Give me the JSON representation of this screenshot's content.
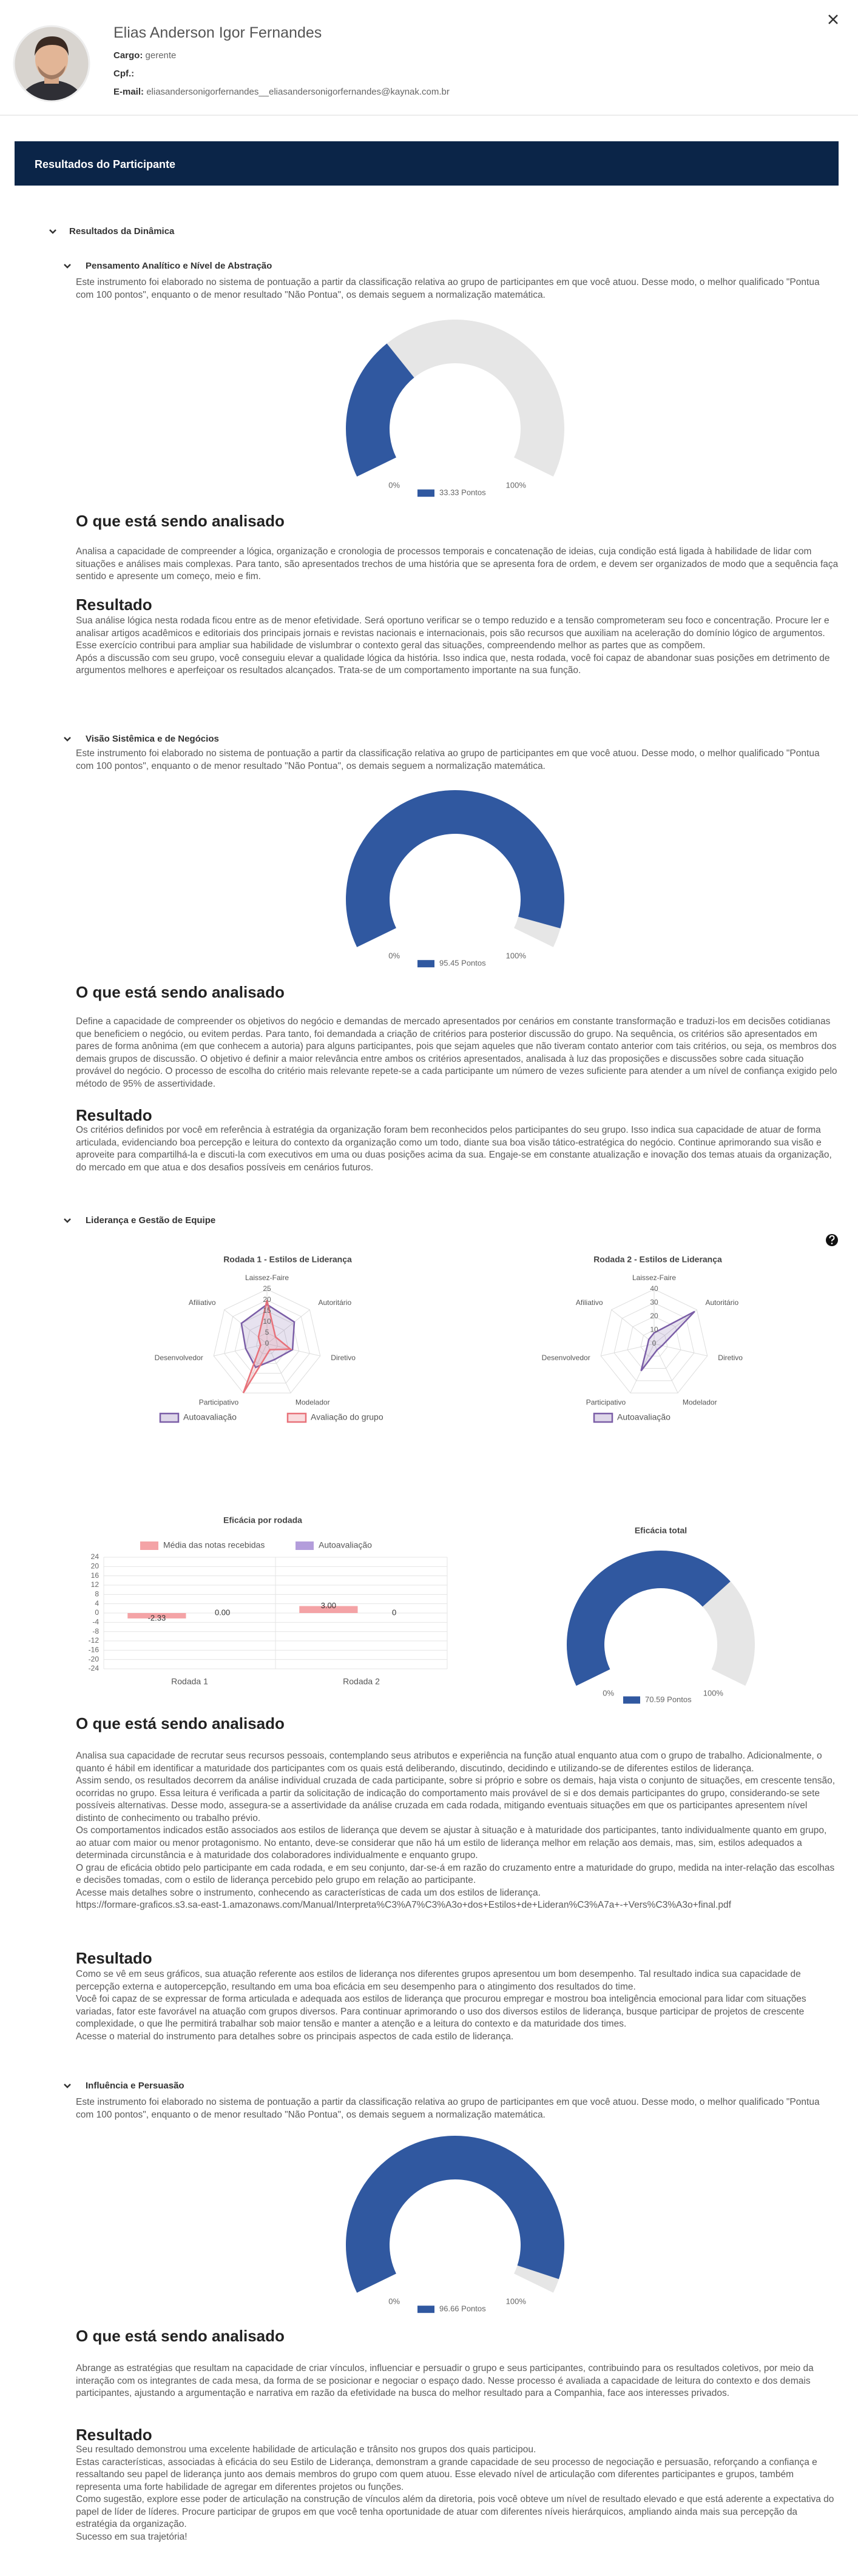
{
  "header": {
    "name": "Elias Anderson Igor Fernandes",
    "cargo_label": "Cargo:",
    "cargo": "gerente",
    "cpf_label": "Cpf.:",
    "email_label": "E-mail:",
    "email": "eliasandersonigorfernandes__eliasandersonigorfernandes@kaynak.com.br"
  },
  "banner": "Resultados do Participante",
  "group_title": "Resultados da Dinâmica",
  "sections": [
    {
      "title": "Pensamento Analítico e Nível de Abstração",
      "intro": "Este instrumento foi elaborado no sistema de pontuação a partir da classificação relativa ao grupo de participantes em que você atuou. Desse modo, o melhor qualificado \"Pontua com 100 pontos\", enquanto o de menor resultado \"Não Pontua\", os demais seguem a normalização matemática.",
      "gauge": {
        "type": "gauge",
        "value": 33.33,
        "value_label": "33.33 Pontos",
        "lim": [
          0,
          100
        ],
        "ticks": [
          {
            "value": 0,
            "label": "0%"
          },
          {
            "value": 100,
            "label": "100%"
          }
        ],
        "color": "#3058a0",
        "track_color": "#e6e6e6"
      },
      "analysis_title": "O que está sendo analisado",
      "analysis": [
        "Analisa a capacidade de compreender a lógica, organização e cronologia de processos temporais e concatenação de ideias, cuja condição está ligada à habilidade de lidar com situações e análises mais complexas. Para tanto, são apresentados trechos de uma história que se apresenta fora de ordem, e devem ser organizados de modo que a sequência faça sentido e apresente um começo, meio e fim."
      ],
      "result_title": "Resultado",
      "result": [
        "Sua análise lógica nesta rodada ficou entre as de menor efetividade. Será oportuno verificar se o tempo reduzido e a tensão comprometeram seu foco e concentração. Procure ler e analisar artigos acadêmicos e editoriais dos principais jornais e revistas nacionais e internacionais, pois são recursos que auxiliam na aceleração do domínio lógico de argumentos. Esse exercício contribui para ampliar sua habilidade de vislumbrar o contexto geral das situações, compreendendo melhor as partes que as compõem.",
        "Após a discussão com seu grupo, você conseguiu elevar a qualidade lógica da história. Isso indica que, nesta rodada, você foi capaz de abandonar suas posições em detrimento de argumentos melhores e aperfeiçoar os resultados alcançados. Trata-se de um comportamento importante na sua função."
      ]
    },
    {
      "title": "Visão Sistêmica e de Negócios",
      "intro": "Este instrumento foi elaborado no sistema de pontuação a partir da classificação relativa ao grupo de participantes em que você atuou. Desse modo, o melhor qualificado \"Pontua com 100 pontos\", enquanto o de menor resultado \"Não Pontua\", os demais seguem a normalização matemática.",
      "gauge": {
        "type": "gauge",
        "value": 95.45,
        "value_label": "95.45 Pontos",
        "lim": [
          0,
          100
        ],
        "ticks": [
          {
            "value": 0,
            "label": "0%"
          },
          {
            "value": 100,
            "label": "100%"
          }
        ],
        "color": "#3058a0",
        "track_color": "#e6e6e6"
      },
      "analysis_title": "O que está sendo analisado",
      "analysis": [
        "Define a capacidade de compreender os objetivos do negócio e demandas de mercado apresentados por cenários em constante transformação e traduzi-los em decisões cotidianas que beneficiem o negócio, ou evitem perdas. Para tanto, foi demandada a criação de critérios para posterior discussão do grupo. Na sequência, os critérios são apresentados em pares de forma anônima (em que conhecem a autoria) para alguns participantes, pois que sejam aqueles que não tiveram contato anterior com tais critérios, ou seja, os membros dos demais grupos de discussão. O objetivo é definir a maior relevância entre ambos os critérios apresentados, analisada à luz das proposições e discussões sobre cada situação provável do negócio. O processo de escolha do critério mais relevante repete-se a cada participante um número de vezes suficiente para atender a um nível de confiança exigido pelo método de 95% de assertividade."
      ],
      "result_title": "Resultado",
      "result": [
        "Os critérios definidos por você em referência à estratégia da organização foram bem reconhecidos pelos participantes do seu grupo. Isso indica sua capacidade de atuar de forma articulada, evidenciando boa percepção e leitura do contexto da organização como um todo, diante sua boa visão tático-estratégica do negócio. Continue aprimorando sua visão e aproveite para compartilhá-la e discuti-la com executivos em uma ou duas posições acima da sua. Engaje-se em constante atualização e inovação dos temas atuais da organização, do mercado em que atua e dos desafios possíveis em cenários futuros."
      ]
    },
    {
      "title": "Liderança e Gestão de Equipe",
      "radars": [
        {
          "type": "radar",
          "title": "Rodada 1 - Estilos de Liderança",
          "categories": [
            "Laissez-Faire",
            "Autoritário",
            "Diretivo",
            "Modelador",
            "Participativo",
            "Desenvolvedor",
            "Afiliativo"
          ],
          "rlim": [
            0,
            25
          ],
          "rticks": [
            0,
            5,
            10,
            15,
            20,
            25
          ],
          "series": [
            {
              "name": "Autoavaliação",
              "color": "#7b5ea7",
              "values": [
                18,
                16,
                12,
                8,
                12,
                10,
                15
              ]
            },
            {
              "name": "Avaliação do grupo",
              "color": "#e8727a",
              "values": [
                20,
                5,
                11,
                3,
                25,
                3,
                5
              ]
            }
          ]
        },
        {
          "type": "radar",
          "title": "Rodada 2 - Estilos de Liderança",
          "categories": [
            "Laissez-Faire",
            "Autoritário",
            "Diretivo",
            "Modelador",
            "Participativo",
            "Desenvolvedor",
            "Afiliativo"
          ],
          "rlim": [
            0,
            40
          ],
          "rticks": [
            0,
            10,
            20,
            30,
            40
          ],
          "series": [
            {
              "name": "Autoavaliação",
              "color": "#7b5ea7",
              "values": [
                8,
                38,
                6,
                5,
                22,
                5,
                5
              ]
            }
          ]
        }
      ],
      "bar": {
        "type": "bar",
        "title": "Eficácia por rodada",
        "categories": [
          "Rodada 1",
          "Rodada 2"
        ],
        "ylim": [
          -24,
          24
        ],
        "yticks": [
          24,
          20,
          16,
          12,
          8,
          4,
          0,
          -4,
          -8,
          -12,
          -16,
          -20,
          -24
        ],
        "series": [
          {
            "name": "Média das notas recebidas",
            "color": "#f4a3a6",
            "values": [
              -2.33,
              3
            ],
            "value_labels": [
              "-2.33",
              "3.00"
            ]
          },
          {
            "name": "Autoavaliação",
            "color": "#b39ddb",
            "values": [
              0,
              0
            ],
            "value_labels": [
              "0.00",
              "0"
            ]
          }
        ]
      },
      "gauge": {
        "type": "gauge",
        "title": "Eficácia total",
        "value": 70.59,
        "value_label": "70.59 Pontos",
        "lim": [
          0,
          100
        ],
        "ticks": [
          {
            "value": 0,
            "label": "0%"
          },
          {
            "value": 100,
            "label": "100%"
          }
        ],
        "color": "#3058a0",
        "track_color": "#e6e6e6"
      },
      "analysis_title": "O que está sendo analisado",
      "analysis": [
        "Analisa sua capacidade de recrutar seus recursos pessoais, contemplando seus atributos e experiência na função atual enquanto atua com o grupo de trabalho. Adicionalmente, o quanto é hábil em identificar a maturidade dos participantes com os quais está deliberando, discutindo, decidindo e utilizando-se de diferentes estilos de liderança.",
        "Assim sendo, os resultados decorrem da análise individual cruzada de cada participante, sobre si próprio e sobre os demais, haja vista o conjunto de situações, em crescente tensão, ocorridas no grupo. Essa leitura é verificada a partir da solicitação de indicação do comportamento mais provável de si e dos demais participantes do grupo, considerando-se sete possíveis alternativas. Desse modo, assegura-se a assertividade da análise cruzada em cada rodada, mitigando eventuais situações em que os participantes apresentem nível distinto de conhecimento ou trabalho prévio.",
        "Os comportamentos indicados estão associados aos estilos de liderança que devem se ajustar à situação e à maturidade dos participantes, tanto individualmente quanto em grupo, ao atuar com maior ou menor protagonismo. No entanto, deve-se considerar que não há um estilo de liderança melhor em relação aos demais, mas, sim, estilos adequados a determinada circunstância e à maturidade dos colaboradores individualmente e enquanto grupo.",
        "O grau de eficácia obtido pelo participante em cada rodada, e em seu conjunto, dar-se-á em razão do cruzamento entre a maturidade do grupo, medida na inter-relação das escolhas e decisões tomadas, com o estilo de liderança percebido pelo grupo em relação ao participante.",
        "Acesse mais detalhes sobre o instrumento, conhecendo as características de cada um dos estilos de liderança.",
        "https://formare-graficos.s3.sa-east-1.amazonaws.com/Manual/Interpreta%C3%A7%C3%A3o+dos+Estilos+de+Lideran%C3%A7a+-+Vers%C3%A3o+final.pdf"
      ],
      "result_title": "Resultado",
      "result": [
        "Como se vê em seus gráficos, sua atuação referente aos estilos de liderança nos diferentes grupos apresentou um bom desempenho. Tal resultado indica sua capacidade de percepção externa e autopercepção, resultando em uma boa eficácia em seu desempenho para o atingimento dos resultados do time.",
        "Você foi capaz de se expressar de forma articulada e adequada aos estilos de liderança que procurou empregar e mostrou boa inteligência emocional para lidar com situações variadas, fator este favorável na atuação com grupos diversos. Para continuar aprimorando o uso dos diversos estilos de liderança, busque participar de projetos de crescente complexidade, o que lhe permitirá trabalhar sob maior tensão e manter a atenção e a leitura do contexto e da maturidade dos times.",
        "Acesse o material do instrumento para detalhes sobre os principais aspectos de cada estilo de liderança."
      ]
    },
    {
      "title": "Influência e Persuasão",
      "intro": "Este instrumento foi elaborado no sistema de pontuação a partir da classificação relativa ao grupo de participantes em que você atuou. Desse modo, o melhor qualificado \"Pontua com 100 pontos\", enquanto o de menor resultado \"Não Pontua\", os demais seguem a normalização matemática.",
      "gauge": {
        "type": "gauge",
        "value": 96.66,
        "value_label": "96.66 Pontos",
        "lim": [
          0,
          100
        ],
        "ticks": [
          {
            "value": 0,
            "label": "0%"
          },
          {
            "value": 100,
            "label": "100%"
          }
        ],
        "color": "#3058a0",
        "track_color": "#e6e6e6"
      },
      "analysis_title": "O que está sendo analisado",
      "analysis": [
        "Abrange as estratégias que resultam na capacidade de criar vínculos, influenciar e persuadir o grupo e seus participantes, contribuindo para os resultados coletivos, por meio da interação com os integrantes de cada mesa, da forma de se posicionar e negociar o espaço dado. Nesse processo é avaliada a capacidade de leitura do contexto e dos demais participantes, ajustando a argumentação e narrativa em razão da efetividade na busca do melhor resultado para a Companhia, face aos interesses privados."
      ],
      "result_title": "Resultado",
      "result": [
        "Seu resultado demonstrou uma excelente habilidade de articulação e trânsito nos grupos dos quais participou.",
        "Estas características, associadas à eficácia do seu Estilo de Liderança, demonstram a grande capacidade de seu processo de negociação e persuasão, reforçando a confiança e ressaltando seu papel de liderança junto aos demais membros do grupo com quem atuou. Esse elevado nível de articulação com diferentes participantes e grupos, também representa uma forte habilidade de agregar em diferentes projetos ou funções.",
        "Como sugestão, explore esse poder de articulação na construção de vínculos além da diretoria, pois você obteve um nível de resultado elevado e que está aderente a expectativa do papel de líder de líderes. Procure participar de grupos em que você tenha oportunidade de atuar com diferentes níveis hierárquicos, ampliando ainda mais sua percepção da estratégia da organização.",
        "Sucesso em sua trajetória!"
      ]
    }
  ]
}
